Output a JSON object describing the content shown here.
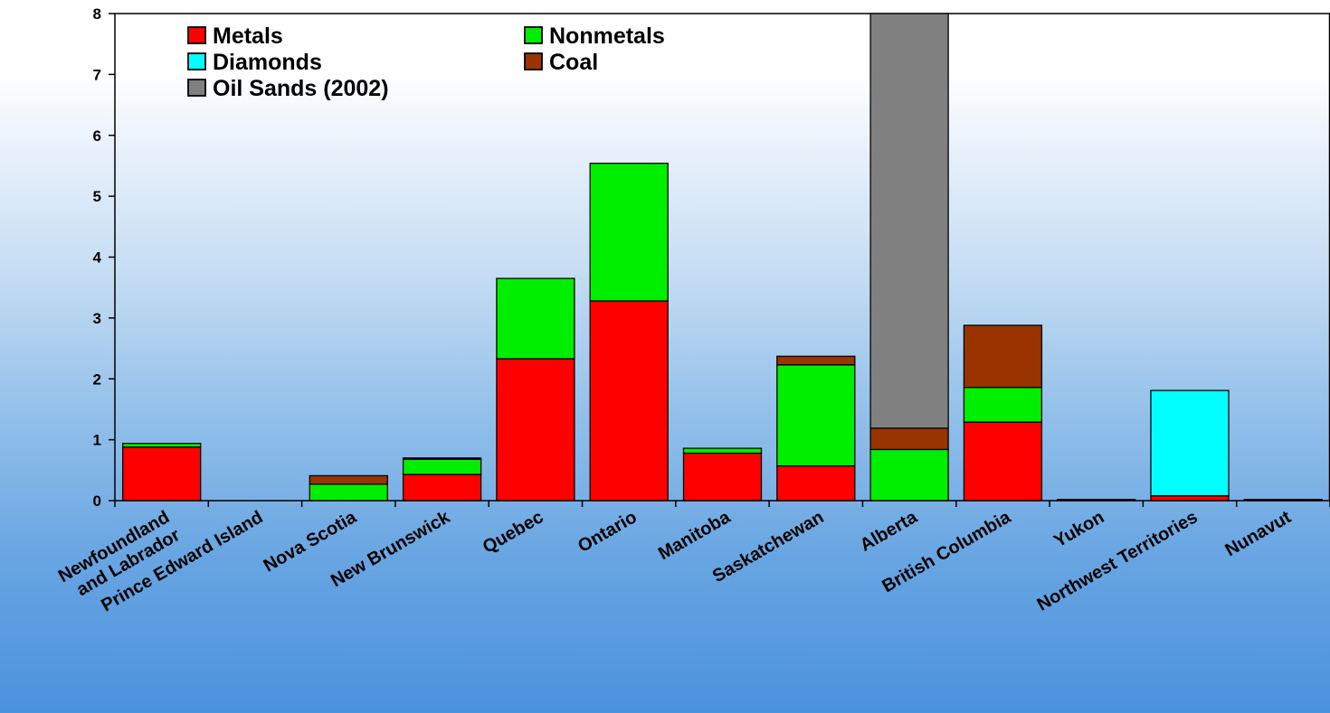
{
  "chart_data": {
    "type": "bar",
    "stacked": true,
    "title": "",
    "xlabel": "",
    "ylabel": "",
    "ylim": [
      0,
      8
    ],
    "yticks": [
      0,
      1,
      2,
      3,
      4,
      5,
      6,
      7,
      8
    ],
    "grid": false,
    "legend_position": "top-left",
    "categories": [
      [
        "Newfoundland",
        "and Labrador"
      ],
      [
        "Prince Edward Island"
      ],
      [
        "Nova Scotia"
      ],
      [
        "New Brunswick"
      ],
      [
        "Quebec"
      ],
      [
        "Ontario"
      ],
      [
        "Manitoba"
      ],
      [
        "Saskatchewan"
      ],
      [
        "Alberta"
      ],
      [
        "British Columbia"
      ],
      [
        "Yukon"
      ],
      [
        "Northwest Territories"
      ],
      [
        "Nunavut"
      ]
    ],
    "series": [
      {
        "name": "Metals",
        "color": "#ff0000",
        "values": [
          0.88,
          0,
          0,
          0.43,
          2.33,
          3.28,
          0.78,
          0.57,
          0,
          1.29,
          0.02,
          0.08,
          0.02
        ]
      },
      {
        "name": "Nonmetals",
        "color": "#00ee00",
        "values": [
          0.06,
          0,
          0.27,
          0.25,
          1.32,
          2.26,
          0.08,
          1.66,
          0.84,
          0.57,
          0,
          0,
          0
        ]
      },
      {
        "name": "Diamonds",
        "color": "#00ffff",
        "values": [
          0,
          0,
          0,
          0,
          0,
          0,
          0,
          0,
          0,
          0,
          0,
          1.73,
          0
        ]
      },
      {
        "name": "Coal",
        "color": "#993300",
        "values": [
          0,
          0,
          0.14,
          0.02,
          0,
          0,
          0,
          0.14,
          0.35,
          1.02,
          0,
          0,
          0
        ]
      },
      {
        "name": "Oil Sands (2002)",
        "color": "#808080",
        "values": [
          0,
          0,
          0,
          0,
          0,
          0,
          0,
          0,
          6.81,
          0,
          0,
          0,
          0
        ]
      }
    ]
  }
}
